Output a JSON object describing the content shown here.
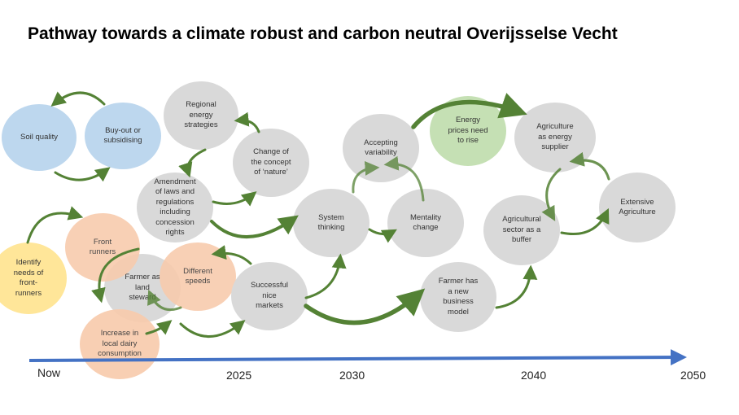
{
  "title": "Pathway towards a climate robust and carbon neutral Overijsselse Vecht",
  "colors": {
    "grey": "#d9d9d9",
    "blue": "#bdd7ee",
    "orange": "#f8cbad",
    "yellow": "#ffe699",
    "green": "#c5e0b4",
    "arrow": "#548235",
    "timeline": "#4472c4"
  },
  "nodes": {
    "soil_quality": "Soil quality",
    "buyout": "Buy-out or\nsubsidising",
    "regional_energy": "Regional\nenergy\nstrategies",
    "amendment": "Amendment\nof laws and\nregulations\nincluding\nconcession\nrights",
    "change_nature": "Change of\nthe concept\nof ‘nature’",
    "identify": "Identify\nneeds of\nfront-\nrunners",
    "front_runners": "Front\nrunners",
    "farmer_steward": "Farmer as\nland\nsteward",
    "different_speeds": "Different\nspeeds",
    "increase_dairy": "Increase in\nlocal dairy\nconsumption",
    "successful_markets": "Successful\nnice\nmarkets",
    "system_thinking": "System\nthinking",
    "accepting_variability": "Accepting\nvariability",
    "mentality_change": "Mentality\nchange",
    "energy_prices": "Energy\nprices need\nto rise",
    "farmer_business": "Farmer has\na new\nbusiness\nmodel",
    "agri_energy": "Agriculture\nas energy\nsupplier",
    "agri_buffer": "Agricultural\nsector as a\nbuffer",
    "extensive": "Extensive\nAgriculture"
  },
  "timeline": {
    "labels": [
      "Now",
      "2025",
      "2030",
      "2040",
      "2050"
    ]
  }
}
